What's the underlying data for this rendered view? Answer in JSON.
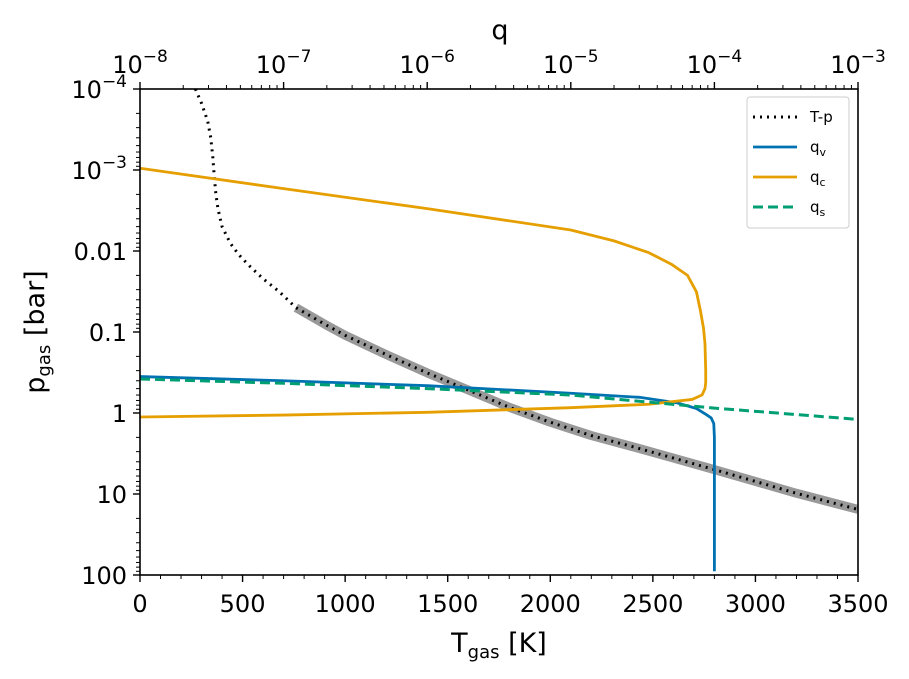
{
  "chart_data": {
    "type": "line",
    "title": "",
    "xlabel": {
      "main": "T",
      "sub": "gas",
      "unit": " [K]"
    },
    "ylabel": {
      "main": "p",
      "sub": "gas",
      "unit": " [bar]"
    },
    "top_xlabel": "q",
    "xlim": [
      0,
      3500
    ],
    "ylim": [
      0.0001,
      100
    ],
    "y_scale": "log",
    "y_inverted": true,
    "top_x_scale": "log",
    "top_xlim": [
      1e-08,
      0.001
    ],
    "x_ticks": [
      0,
      500,
      1000,
      1500,
      2000,
      2500,
      3000,
      3500
    ],
    "x_tick_labels": [
      "0",
      "500",
      "1000",
      "1500",
      "2000",
      "2500",
      "3000",
      "3500"
    ],
    "y_ticks": [
      0.0001,
      0.001,
      0.01,
      0.1,
      1,
      10,
      100
    ],
    "y_tick_labels": [
      {
        "base": "10",
        "exp": "−4"
      },
      {
        "base": "10",
        "exp": "−3"
      },
      {
        "text": "0.01"
      },
      {
        "text": "0.1"
      },
      {
        "text": "1"
      },
      {
        "text": "10"
      },
      {
        "text": "100"
      }
    ],
    "top_x_ticks": [
      1e-08,
      1e-07,
      1e-06,
      1e-05,
      0.0001,
      0.001
    ],
    "top_x_tick_labels": [
      {
        "base": "10",
        "exp": "−8"
      },
      {
        "base": "10",
        "exp": "−7"
      },
      {
        "base": "10",
        "exp": "−6"
      },
      {
        "base": "10",
        "exp": "−5"
      },
      {
        "base": "10",
        "exp": "−4"
      },
      {
        "base": "10",
        "exp": "−3"
      }
    ],
    "legend": {
      "placement": "top-right",
      "entries": [
        {
          "label": "T-p",
          "sub": "",
          "series": "T-p"
        },
        {
          "label": "q",
          "sub": "v",
          "series": "q_v"
        },
        {
          "label": "q",
          "sub": "c",
          "series": "q_c"
        },
        {
          "label": "q",
          "sub": "s",
          "series": "q_s"
        }
      ]
    },
    "series": [
      {
        "name": "T-p (model range)",
        "axis": "T",
        "color": "#999999",
        "style": "thick",
        "points": [
          [
            760,
            0.05
          ],
          [
            900,
            0.08
          ],
          [
            1000,
            0.11
          ],
          [
            1200,
            0.19
          ],
          [
            1400,
            0.32
          ],
          [
            1600,
            0.52
          ],
          [
            1800,
            0.85
          ],
          [
            2000,
            1.3
          ],
          [
            2200,
            1.9
          ],
          [
            2400,
            2.6
          ],
          [
            2600,
            3.6
          ],
          [
            2800,
            5.0
          ],
          [
            3000,
            7.0
          ],
          [
            3200,
            9.8
          ],
          [
            3500,
            15.5
          ]
        ]
      },
      {
        "name": "T-p",
        "axis": "T",
        "color": "#000000",
        "style": "dotted",
        "points": [
          [
            270,
            0.0001
          ],
          [
            300,
            0.00015
          ],
          [
            330,
            0.00025
          ],
          [
            345,
            0.0004
          ],
          [
            355,
            0.0007
          ],
          [
            362,
            0.0012
          ],
          [
            370,
            0.002
          ],
          [
            380,
            0.003
          ],
          [
            400,
            0.005
          ],
          [
            440,
            0.008
          ],
          [
            480,
            0.011
          ],
          [
            530,
            0.015
          ],
          [
            600,
            0.022
          ],
          [
            680,
            0.032
          ],
          [
            760,
            0.05
          ],
          [
            900,
            0.08
          ],
          [
            1000,
            0.11
          ],
          [
            1200,
            0.19
          ],
          [
            1400,
            0.32
          ],
          [
            1600,
            0.52
          ],
          [
            1800,
            0.85
          ],
          [
            2000,
            1.3
          ],
          [
            2200,
            1.9
          ],
          [
            2400,
            2.6
          ],
          [
            2600,
            3.6
          ],
          [
            2800,
            5.0
          ],
          [
            3000,
            7.0
          ],
          [
            3200,
            9.8
          ],
          [
            3500,
            15.5
          ]
        ]
      },
      {
        "name": "q_v",
        "axis": "q",
        "color": "#0072B2",
        "style": "solid",
        "points": [
          [
            1e-08,
            0.355
          ],
          [
            1e-07,
            0.4
          ],
          [
            1e-06,
            0.46
          ],
          [
            1e-05,
            0.57
          ],
          [
            3e-05,
            0.64
          ],
          [
            5.5e-05,
            0.75
          ],
          [
            7.5e-05,
            0.88
          ],
          [
            8.8e-05,
            1.05
          ],
          [
            9.5e-05,
            1.15
          ],
          [
            9.9e-05,
            1.35
          ],
          [
            0.0001,
            2.0
          ],
          [
            0.0001,
            10
          ],
          [
            0.0001,
            90
          ]
        ]
      },
      {
        "name": "q_c",
        "axis": "q",
        "color": "#E69F00",
        "style": "solid",
        "points": [
          [
            1e-08,
            0.00095
          ],
          [
            1e-07,
            0.0017
          ],
          [
            1e-06,
            0.003
          ],
          [
            1e-05,
            0.0055
          ],
          [
            2e-05,
            0.0075
          ],
          [
            3.5e-05,
            0.0105
          ],
          [
            5e-05,
            0.0145
          ],
          [
            6.5e-05,
            0.02
          ],
          [
            7.5e-05,
            0.032
          ],
          [
            8e-05,
            0.055
          ],
          [
            8.4e-05,
            0.09
          ],
          [
            8.6e-05,
            0.14
          ],
          [
            8.7e-05,
            0.3
          ],
          [
            8.7e-05,
            0.42
          ],
          [
            8.6e-05,
            0.5
          ],
          [
            8.2e-05,
            0.6
          ],
          [
            7e-05,
            0.68
          ],
          [
            3.5e-05,
            0.78
          ],
          [
            1e-05,
            0.86
          ],
          [
            1e-06,
            0.98
          ],
          [
            1e-07,
            1.06
          ],
          [
            1e-08,
            1.12
          ]
        ]
      },
      {
        "name": "q_s",
        "axis": "q",
        "color": "#009E73",
        "style": "dashed",
        "points": [
          [
            1e-08,
            0.38
          ],
          [
            1e-07,
            0.43
          ],
          [
            1e-06,
            0.5
          ],
          [
            1e-05,
            0.6
          ],
          [
            0.0001,
            0.87
          ],
          [
            0.001,
            1.2
          ]
        ]
      }
    ]
  }
}
